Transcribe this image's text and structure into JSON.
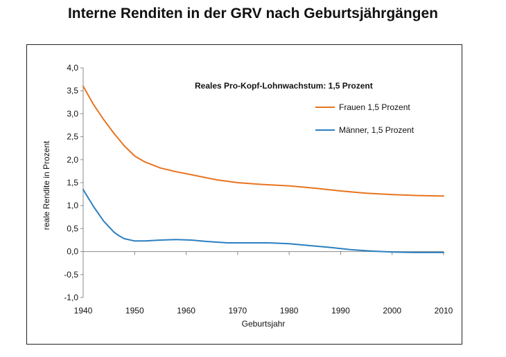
{
  "title": "Interne Renditen in der GRV nach Geburtsjährgängen",
  "chart_data": {
    "type": "line",
    "title": "Interne Renditen in der GRV nach Geburtsjährgängen",
    "subtitle": "Reales Pro-Kopf-Lohnwachstum: 1,5 Prozent",
    "xlabel": "Geburtsjahr",
    "ylabel": "reale Rendite in Prozent",
    "xlim": [
      1940,
      2010
    ],
    "ylim": [
      -1.0,
      4.0
    ],
    "x_ticks": [
      1940,
      1950,
      1960,
      1970,
      1980,
      1990,
      2000,
      2010
    ],
    "x_tick_labels": [
      "1940",
      "1950",
      "1960",
      "1970",
      "1980",
      "1990",
      "2000",
      "2010"
    ],
    "y_ticks": [
      4.0,
      3.5,
      3.0,
      2.5,
      2.0,
      1.5,
      1.0,
      0.5,
      0.0,
      -0.5,
      -1.0
    ],
    "y_tick_labels": [
      "4,0",
      "3,5",
      "3,0",
      "2,5",
      "2,0",
      "1,5",
      "1,0",
      "0,5",
      "0,0",
      "-0,5",
      "-1,0"
    ],
    "legend_position": "top-right",
    "series": [
      {
        "name": "Frauen 1,5 Prozent",
        "color": "#E8731F",
        "x": [
          1940,
          1942,
          1944,
          1946,
          1948,
          1950,
          1952,
          1955,
          1958,
          1962,
          1966,
          1970,
          1975,
          1980,
          1985,
          1990,
          1995,
          2000,
          2005,
          2010
        ],
        "y": [
          3.6,
          3.2,
          2.87,
          2.57,
          2.3,
          2.08,
          1.95,
          1.82,
          1.74,
          1.65,
          1.56,
          1.5,
          1.46,
          1.43,
          1.38,
          1.32,
          1.27,
          1.24,
          1.22,
          1.21
        ]
      },
      {
        "name": "Männer, 1,5 Prozent",
        "color": "#2A7FC0",
        "x": [
          1940,
          1942,
          1944,
          1946,
          1947,
          1948,
          1950,
          1952,
          1955,
          1958,
          1961,
          1964,
          1968,
          1972,
          1976,
          1980,
          1984,
          1988,
          1992,
          1996,
          2000,
          2004,
          2008,
          2010
        ],
        "y": [
          1.35,
          0.98,
          0.66,
          0.42,
          0.34,
          0.28,
          0.23,
          0.23,
          0.25,
          0.26,
          0.25,
          0.22,
          0.19,
          0.19,
          0.19,
          0.17,
          0.13,
          0.09,
          0.04,
          0.01,
          -0.01,
          -0.02,
          -0.02,
          -0.02
        ]
      }
    ]
  }
}
